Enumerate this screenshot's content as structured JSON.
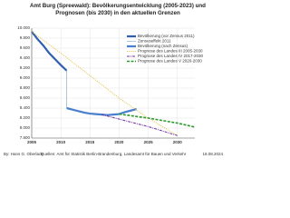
{
  "chart_data": {
    "type": "line",
    "title": "Amt Burg (Spreewald): Bevölkerungsentwicklung (2005-2023) und Prognosen (bis 2030) in den aktuellen Grenzen",
    "xlim": [
      2005,
      2033
    ],
    "xticks": [
      2005,
      2010,
      2015,
      2020,
      2025,
      2030
    ],
    "ylim": [
      7800,
      10000
    ],
    "yticks": [
      {
        "value": 7800,
        "label": "7.800"
      },
      {
        "value": 8000,
        "label": "8.000"
      },
      {
        "value": 8200,
        "label": "8.200"
      },
      {
        "value": 8400,
        "label": "8.400"
      },
      {
        "value": 8600,
        "label": "8.600"
      },
      {
        "value": 8800,
        "label": "8.800"
      },
      {
        "value": 9000,
        "label": "9.000"
      },
      {
        "value": 9200,
        "label": "9.200"
      },
      {
        "value": 9400,
        "label": "9.400"
      },
      {
        "value": 9600,
        "label": "9.600"
      },
      {
        "value": 9800,
        "label": "9.800"
      },
      {
        "value": 10000,
        "label": "10.000"
      }
    ],
    "grid": true,
    "series": [
      {
        "name": "Bevölkerung (vor Zensus 2011)",
        "color": "#2f5fae",
        "style": "solid",
        "width": 2.2,
        "x": [
          2005,
          2006,
          2007,
          2008,
          2009,
          2010,
          2011
        ],
        "values": [
          9930,
          9780,
          9650,
          9500,
          9380,
          9260,
          9150
        ]
      },
      {
        "name": "Zensuseffekt 2011",
        "color": "#9fb6d6",
        "style": "solid",
        "width": 0.8,
        "x": [
          2011,
          2011
        ],
        "values": [
          9150,
          8400
        ]
      },
      {
        "name": "Bevölkerung (nach Zensus)",
        "color": "#4a7fd0",
        "style": "solid",
        "width": 2.2,
        "x": [
          2011,
          2012,
          2013,
          2014,
          2015,
          2016,
          2017,
          2018,
          2019,
          2020,
          2021,
          2022,
          2023
        ],
        "values": [
          8400,
          8370,
          8340,
          8310,
          8290,
          8280,
          8270,
          8260,
          8270,
          8280,
          8320,
          8350,
          8380
        ]
      },
      {
        "name": "Prognose des Landes III 2005-2030",
        "color": "#e0c040",
        "style": "dotted",
        "width": 1,
        "x": [
          2005,
          2010,
          2015,
          2020,
          2025,
          2030
        ],
        "values": [
          9930,
          9500,
          9050,
          8600,
          8200,
          7850
        ]
      },
      {
        "name": "Prognose des Landes IV 2017-2030",
        "color": "#7030a0",
        "style": "dashdot",
        "width": 1,
        "x": [
          2017,
          2020,
          2025,
          2030
        ],
        "values": [
          8270,
          8180,
          8030,
          7850
        ]
      },
      {
        "name": "Prognose des Landes V 2020-2030",
        "color": "#2a9a2a",
        "style": "dashed",
        "width": 1.6,
        "x": [
          2020,
          2025,
          2030,
          2033
        ],
        "values": [
          8280,
          8200,
          8100,
          8020
        ]
      }
    ],
    "author": "By: Hans G. Oberlack",
    "source": "Quellen: Amt für Statistik Berlin-Brandenburg, Landesamt für Bauen und Verkehr",
    "date": "18.08.2024"
  }
}
